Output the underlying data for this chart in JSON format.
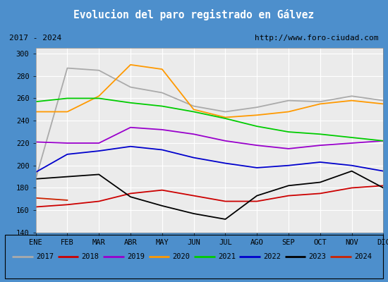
{
  "title": "Evolucion del paro registrado en Gálvez",
  "subtitle_left": "2017 - 2024",
  "subtitle_right": "http://www.foro-ciudad.com",
  "xlabel_ticks": [
    "ENE",
    "FEB",
    "MAR",
    "ABR",
    "MAY",
    "JUN",
    "JUL",
    "AGO",
    "SEP",
    "OCT",
    "NOV",
    "DIC"
  ],
  "ylim": [
    140,
    305
  ],
  "yticks": [
    140,
    160,
    180,
    200,
    220,
    240,
    260,
    280,
    300
  ],
  "title_bg": "#4d8fcc",
  "title_color": "white",
  "plot_bg": "#ebebeb",
  "grid_color": "#ffffff",
  "border_color": "#4d8fcc",
  "series": {
    "2017": {
      "color": "#aaaaaa",
      "values": [
        188,
        287,
        285,
        270,
        265,
        253,
        248,
        252,
        258,
        257,
        262,
        258
      ]
    },
    "2018": {
      "color": "#cc0000",
      "values": [
        163,
        165,
        168,
        175,
        178,
        173,
        168,
        168,
        173,
        175,
        180,
        182
      ]
    },
    "2019": {
      "color": "#9900cc",
      "values": [
        221,
        220,
        220,
        234,
        232,
        228,
        222,
        218,
        215,
        218,
        220,
        222
      ]
    },
    "2020": {
      "color": "#ff9900",
      "values": [
        248,
        248,
        262,
        290,
        286,
        250,
        243,
        245,
        248,
        255,
        258,
        255
      ]
    },
    "2021": {
      "color": "#00cc00",
      "values": [
        257,
        260,
        260,
        256,
        253,
        248,
        242,
        235,
        230,
        228,
        225,
        222
      ]
    },
    "2022": {
      "color": "#0000cc",
      "values": [
        194,
        210,
        213,
        217,
        214,
        207,
        202,
        198,
        200,
        203,
        200,
        195
      ]
    },
    "2023": {
      "color": "#000000",
      "values": [
        188,
        190,
        192,
        172,
        164,
        157,
        152,
        173,
        182,
        185,
        195,
        180
      ]
    },
    "2024": {
      "color": "#cc2200",
      "values": [
        171,
        169,
        null,
        null,
        null,
        null,
        null,
        null,
        null,
        null,
        null,
        null
      ]
    }
  },
  "legend_years": [
    "2017",
    "2018",
    "2019",
    "2020",
    "2021",
    "2022",
    "2023",
    "2024"
  ]
}
